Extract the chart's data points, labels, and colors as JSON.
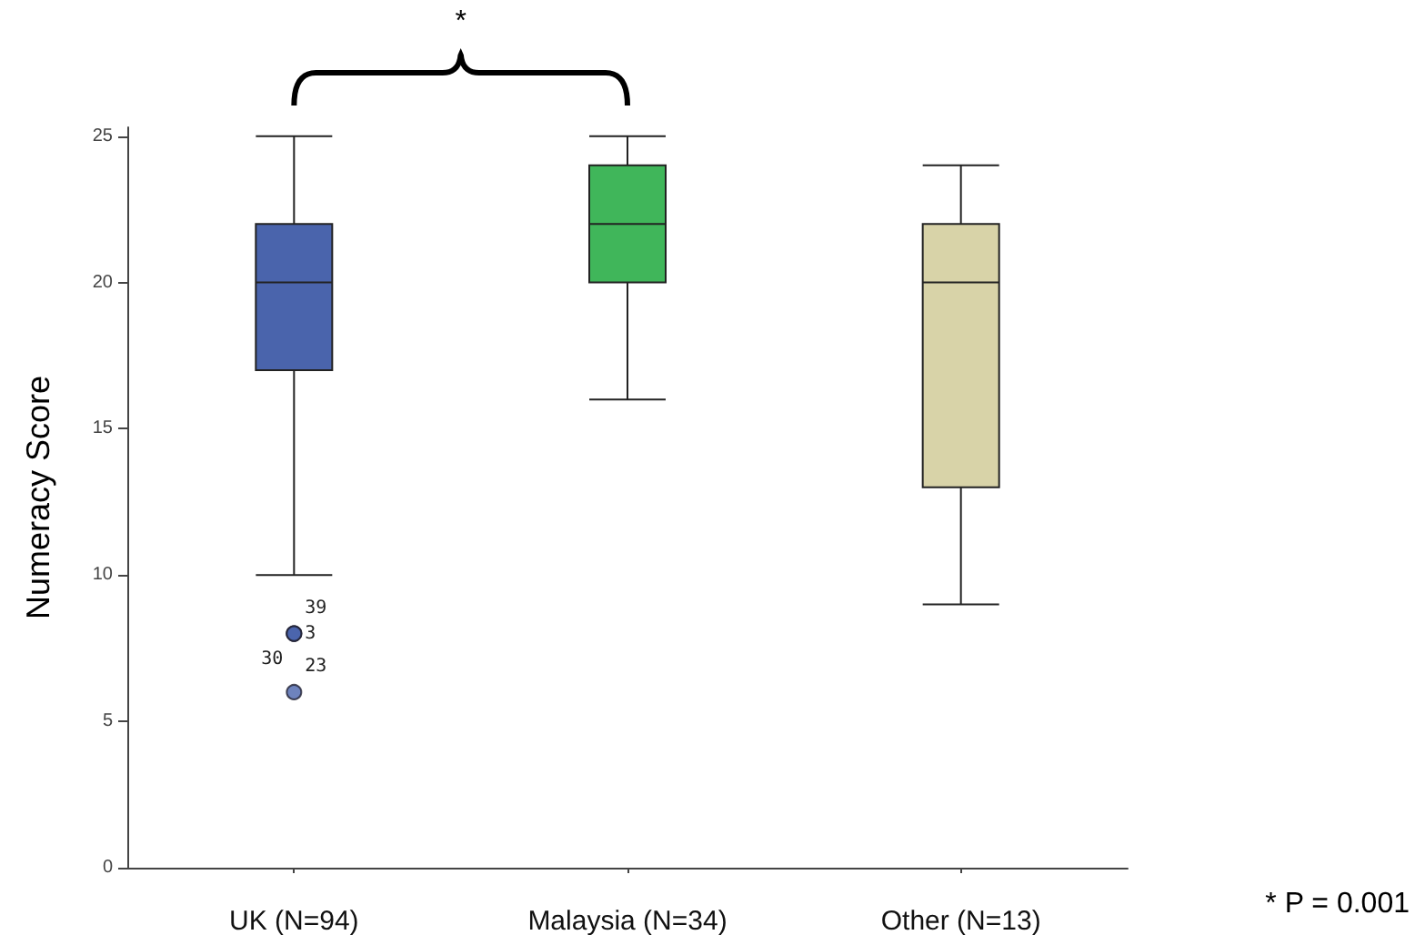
{
  "chart_data": {
    "type": "box",
    "ylabel": "Numeracy Score",
    "categories": [
      "UK (N=94)",
      "Malaysia (N=34)",
      "Other (N=13)"
    ],
    "colors": [
      "#4a64ac",
      "#40b65a",
      "#d8d3a8"
    ],
    "boxes": [
      {
        "low": 10,
        "q1": 17,
        "median": 20,
        "q3": 22,
        "high": 25,
        "outliers": [
          8,
          8,
          8,
          6
        ]
      },
      {
        "low": 16,
        "q1": 20,
        "median": 22,
        "q3": 24,
        "high": 25
      },
      {
        "low": 9,
        "q1": 13,
        "median": 20,
        "q3": 22,
        "high": 24
      }
    ],
    "ylim": [
      0,
      25.3
    ],
    "yticks": [
      0,
      5,
      10,
      15,
      20,
      25
    ],
    "grid": false,
    "annotations": [
      "*",
      "* P = 0.001",
      "39",
      "3",
      "30",
      "23"
    ]
  }
}
